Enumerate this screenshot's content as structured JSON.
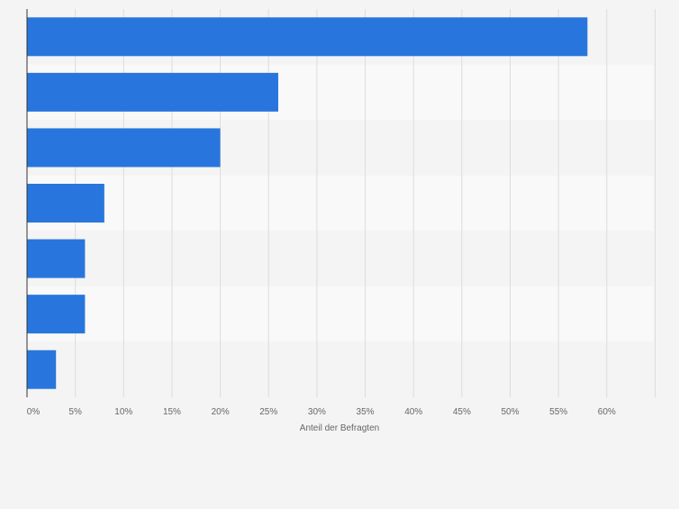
{
  "chart_data": {
    "type": "bar",
    "orientation": "horizontal",
    "title": "",
    "xlabel": "Anteil der Befragten",
    "ylabel": "",
    "categories": [
      "",
      "",
      "",
      "",
      "",
      "",
      ""
    ],
    "values": [
      58,
      26,
      20,
      8,
      6,
      6,
      3
    ],
    "xlim": [
      0,
      65
    ],
    "xticks": [
      0,
      5,
      10,
      15,
      20,
      25,
      30,
      35,
      40,
      45,
      50,
      55,
      60
    ],
    "xtick_labels": [
      "0%",
      "5%",
      "10%",
      "15%",
      "20%",
      "25%",
      "30%",
      "35%",
      "40%",
      "45%",
      "50%",
      "55%",
      "60%"
    ],
    "grid": true,
    "legend": "none",
    "colors": {
      "bar": "#2876dd",
      "row_band_light": "#f9f9f9",
      "row_band_dark": "#f4f4f4",
      "grid": "#dcdcdc",
      "axis": "#333333",
      "tick_text": "#666666"
    }
  }
}
